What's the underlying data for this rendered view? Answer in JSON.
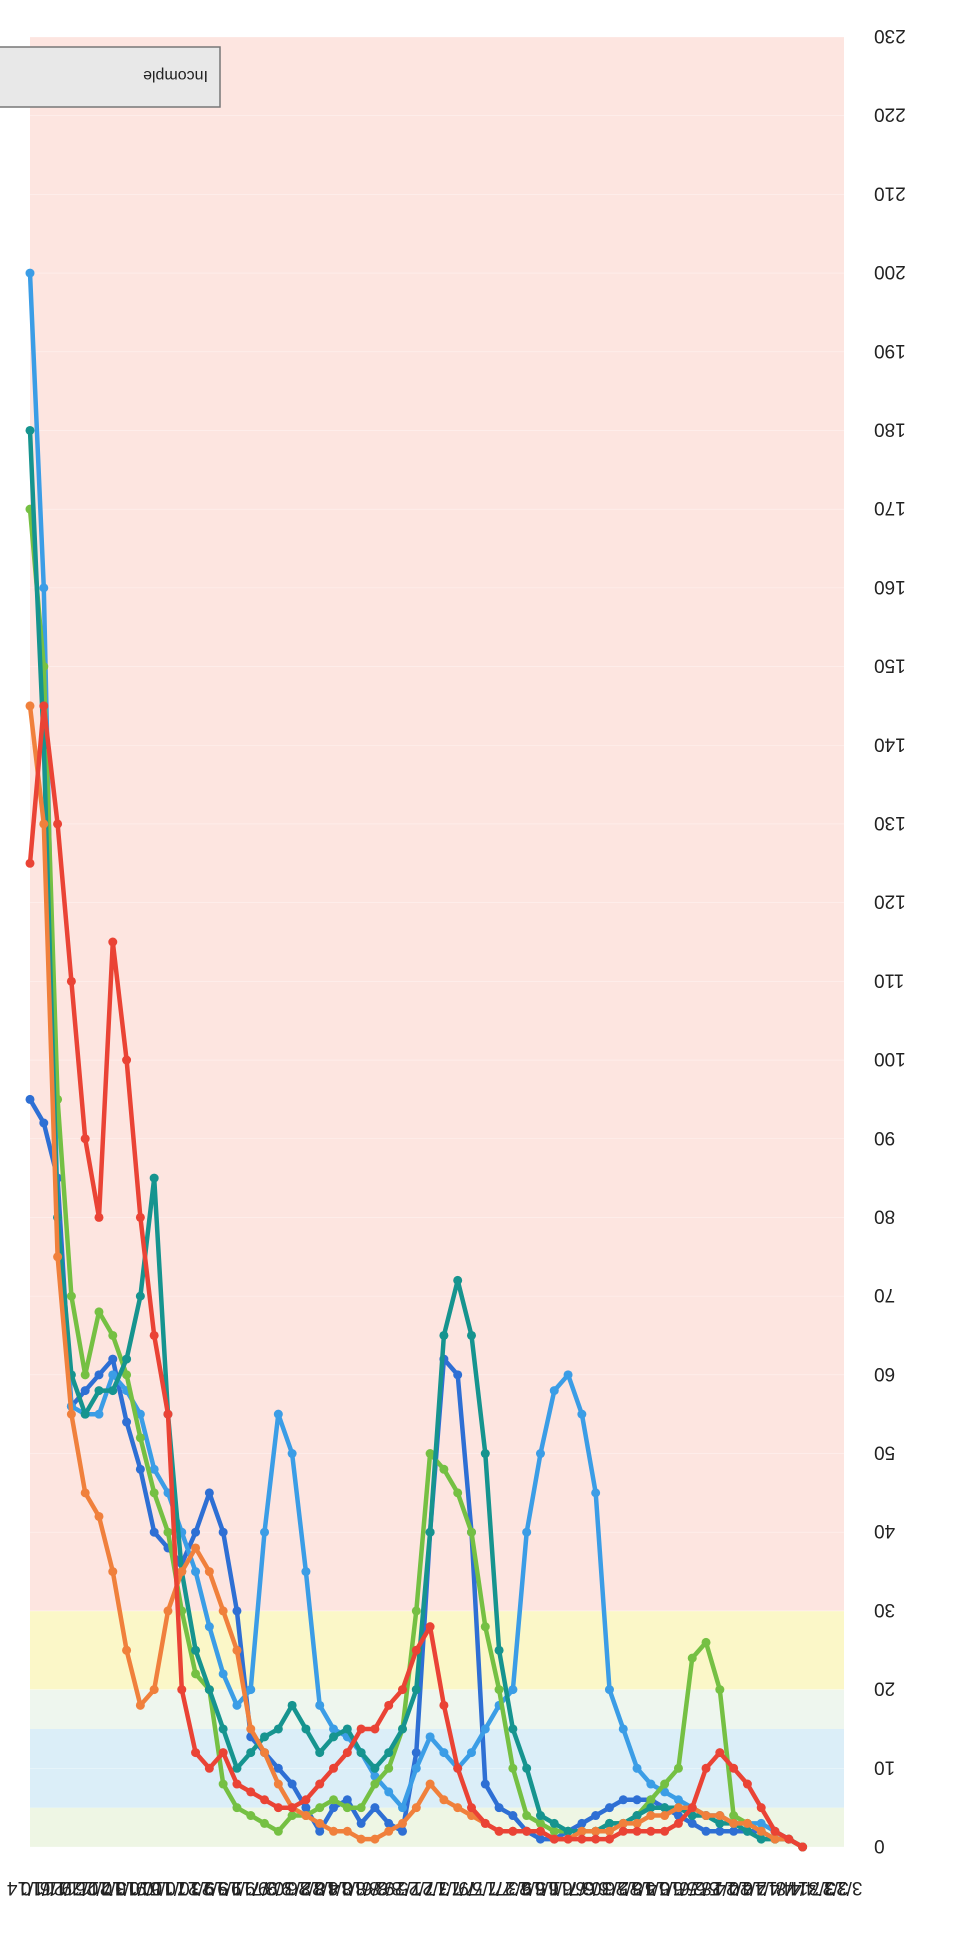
{
  "chart_data": {
    "type": "line",
    "orientation": "rotated-180",
    "x": [
      "3/23",
      "3/27",
      "3/31",
      "4/4",
      "4/8",
      "4/12",
      "4/16",
      "4/20",
      "4/24",
      "4/28",
      "5/2",
      "5/6",
      "5/10",
      "5/14",
      "5/18",
      "5/22",
      "5/26",
      "5/30",
      "6/3",
      "6/7",
      "6/11",
      "6/15",
      "6/19",
      "6/23",
      "6/27",
      "7/1",
      "7/5",
      "7/9",
      "7/13",
      "7/17",
      "7/21",
      "7/25",
      "7/29",
      "8/2",
      "8/6",
      "8/10",
      "8/14",
      "8/18",
      "8/22",
      "8/26",
      "8/30",
      "9/3",
      "9/7",
      "9/11",
      "9/15",
      "9/19",
      "9/23",
      "9/27",
      "10/1",
      "10/5",
      "10/9",
      "10/13",
      "10/17",
      "10/21",
      "10/25",
      "10/29",
      "11/2",
      "11/6",
      "11/10",
      "11/14"
    ],
    "ylim": [
      0,
      230
    ],
    "yticks": [
      0,
      10,
      20,
      30,
      40,
      50,
      60,
      70,
      80,
      90,
      100,
      110,
      120,
      130,
      140,
      150,
      160,
      170,
      180,
      190,
      200,
      210,
      220,
      230
    ],
    "bands": [
      {
        "from": 0,
        "to": 5,
        "color": "#eef6e4"
      },
      {
        "from": 5,
        "to": 15,
        "color": "#dbeef8"
      },
      {
        "from": 15,
        "to": 20,
        "color": "#eef6ee"
      },
      {
        "from": 20,
        "to": 30,
        "color": "#fbf7c8"
      },
      {
        "from": 30,
        "to": 230,
        "color": "#fde5e0"
      }
    ],
    "legend": {
      "position": "top-left",
      "labels": [
        "Incomple"
      ]
    },
    "series": [
      {
        "color": "#2e6fd4",
        "values": [
          null,
          null,
          null,
          0,
          1,
          1,
          2,
          2,
          2,
          2,
          2,
          3,
          4,
          5,
          6,
          6,
          6,
          5,
          4,
          3,
          2,
          1,
          1,
          2,
          4,
          5,
          8,
          40,
          60,
          62,
          40,
          12,
          2,
          3,
          5,
          3,
          6,
          5,
          2,
          5,
          8,
          10,
          12,
          14,
          30,
          40,
          45,
          40,
          36,
          38,
          40,
          48,
          54,
          62,
          60,
          58,
          56,
          85,
          92,
          95
        ]
      },
      {
        "color": "#3b9de6",
        "values": [
          null,
          null,
          null,
          0,
          1,
          2,
          3,
          3,
          3,
          4,
          4,
          5,
          6,
          7,
          8,
          10,
          15,
          20,
          45,
          55,
          60,
          58,
          50,
          40,
          20,
          18,
          15,
          12,
          10,
          12,
          14,
          10,
          5,
          7,
          9,
          12,
          14,
          15,
          18,
          35,
          50,
          55,
          40,
          20,
          18,
          22,
          28,
          35,
          40,
          45,
          48,
          55,
          58,
          60,
          55,
          55,
          56,
          80,
          160,
          200
        ]
      },
      {
        "color": "#75c043",
        "values": [
          null,
          null,
          null,
          0,
          1,
          1,
          2,
          3,
          4,
          20,
          26,
          24,
          10,
          8,
          6,
          4,
          3,
          3,
          2,
          2,
          2,
          2,
          3,
          4,
          10,
          20,
          28,
          40,
          45,
          48,
          50,
          30,
          15,
          10,
          8,
          5,
          5,
          6,
          5,
          4,
          4,
          2,
          3,
          4,
          5,
          8,
          20,
          22,
          30,
          40,
          45,
          52,
          60,
          65,
          68,
          60,
          70,
          95,
          150,
          170
        ]
      },
      {
        "color": "#16948f",
        "values": [
          null,
          null,
          null,
          0,
          1,
          1,
          1,
          2,
          3,
          3,
          4,
          4,
          5,
          5,
          5,
          4,
          3,
          3,
          2,
          2,
          2,
          3,
          4,
          10,
          15,
          25,
          50,
          65,
          72,
          65,
          40,
          20,
          15,
          12,
          10,
          12,
          15,
          14,
          12,
          15,
          18,
          15,
          14,
          12,
          10,
          15,
          20,
          25,
          35,
          55,
          85,
          70,
          62,
          58,
          58,
          55,
          60,
          80,
          140,
          180
        ]
      },
      {
        "color": "#f0803c",
        "values": [
          null,
          null,
          null,
          0,
          1,
          1,
          2,
          3,
          3,
          4,
          4,
          5,
          5,
          4,
          4,
          3,
          3,
          2,
          2,
          2,
          1,
          1,
          2,
          2,
          2,
          2,
          3,
          4,
          5,
          6,
          8,
          5,
          3,
          2,
          1,
          1,
          2,
          2,
          3,
          4,
          5,
          8,
          12,
          15,
          25,
          30,
          35,
          38,
          35,
          30,
          20,
          18,
          25,
          35,
          42,
          45,
          55,
          75,
          130,
          145
        ]
      },
      {
        "color": "#ea4335",
        "values": [
          null,
          null,
          null,
          0,
          1,
          2,
          5,
          8,
          10,
          12,
          10,
          5,
          3,
          2,
          2,
          2,
          2,
          1,
          1,
          1,
          1,
          1,
          2,
          2,
          2,
          2,
          3,
          5,
          10,
          18,
          28,
          25,
          20,
          18,
          15,
          15,
          12,
          10,
          8,
          6,
          5,
          5,
          6,
          7,
          8,
          12,
          10,
          12,
          20,
          55,
          65,
          80,
          100,
          115,
          80,
          90,
          110,
          130,
          145,
          125
        ]
      }
    ]
  }
}
